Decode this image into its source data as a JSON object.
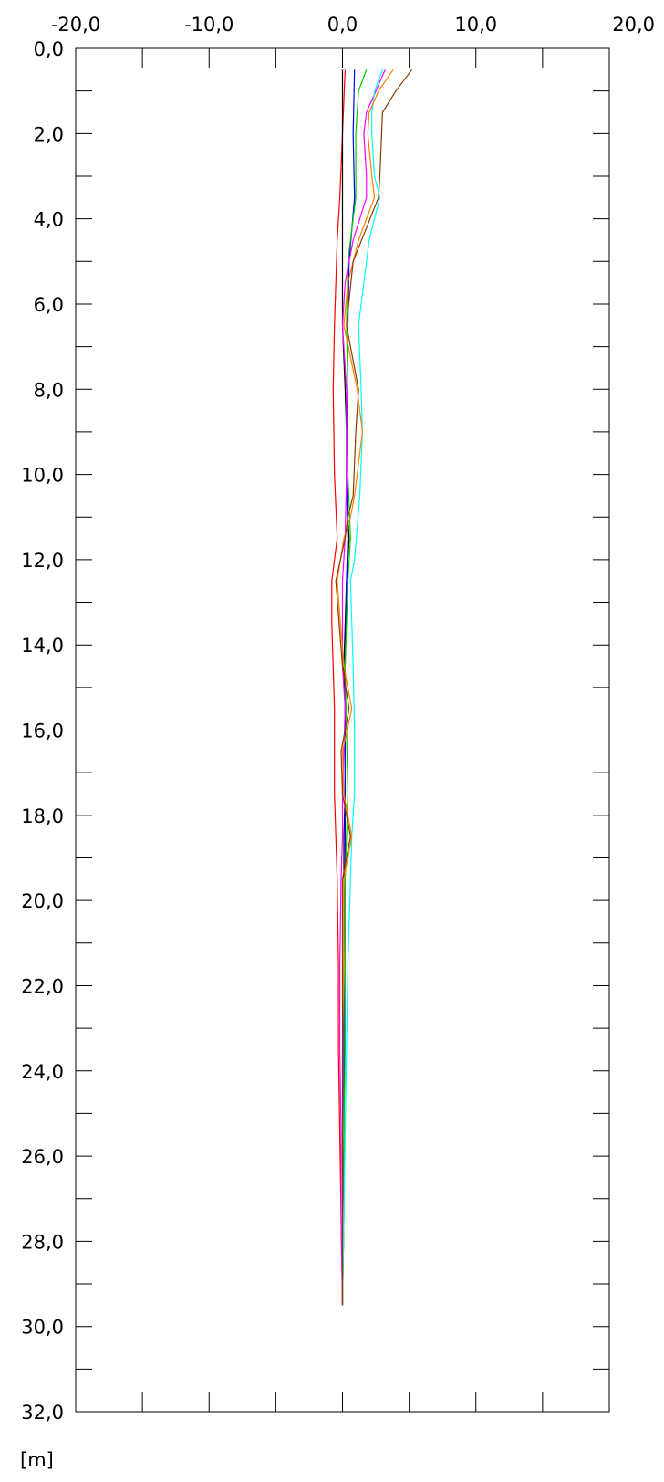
{
  "chart_data": {
    "type": "line",
    "orientation": "vertical-depth-profile",
    "title": "",
    "xlabel": "",
    "ylabel": "[m]",
    "xlim": [
      -20.0,
      20.0
    ],
    "ylim": [
      0.0,
      32.0
    ],
    "y_inverted": true,
    "x_ticks": [
      "-20,0",
      "-10,0",
      "0,0",
      "10,0",
      "20,0"
    ],
    "x_tick_values": [
      -20,
      -10,
      0,
      10,
      20
    ],
    "x_minor_tick_values": [
      -15,
      -5,
      5,
      15
    ],
    "y_ticks": [
      "0,0",
      "2,0",
      "4,0",
      "6,0",
      "8,0",
      "10,0",
      "12,0",
      "14,0",
      "16,0",
      "18,0",
      "20,0",
      "22,0",
      "24,0",
      "26,0",
      "28,0",
      "30,0",
      "32,0"
    ],
    "y_tick_values": [
      0,
      2,
      4,
      6,
      8,
      10,
      12,
      14,
      16,
      18,
      20,
      22,
      24,
      26,
      28,
      30,
      32
    ],
    "y_minor_tick_values": [
      1,
      3,
      5,
      7,
      9,
      11,
      13,
      15,
      17,
      19,
      21,
      23,
      25,
      27,
      29,
      31
    ],
    "grid": false,
    "legend": "none",
    "series": [
      {
        "color": "#ff0000",
        "depth": [
          0.5,
          2.0,
          3.5,
          4.5,
          6.5,
          8.0,
          10.0,
          11.5,
          12.5,
          13.5,
          15.5,
          17.5,
          19.5,
          21.5,
          23.5,
          25.5,
          27.5,
          29.5
        ],
        "values": [
          0.2,
          0.0,
          -0.2,
          -0.4,
          -0.6,
          -0.7,
          -0.6,
          -0.4,
          -0.8,
          -0.8,
          -0.6,
          -0.6,
          -0.4,
          -0.3,
          -0.3,
          -0.2,
          -0.1,
          0.0
        ]
      },
      {
        "color": "#000000",
        "depth": [
          0.5,
          1.0,
          2.0,
          3.5,
          4.5,
          5.5,
          6.5,
          8.0,
          9.0,
          10.5,
          11.5,
          12.5,
          14.5,
          15.5,
          17.5,
          18.5,
          19.5,
          21.5,
          23.5,
          25.5,
          27.5,
          29.5
        ],
        "values": [
          0.0,
          0.0,
          0.0,
          0.0,
          0.0,
          0.0,
          0.0,
          0.2,
          0.3,
          0.3,
          0.5,
          0.3,
          0.1,
          0.2,
          0.2,
          0.1,
          0.1,
          0.1,
          0.1,
          0.1,
          0.1,
          0.0
        ]
      },
      {
        "color": "#0000ff",
        "depth": [
          0.5,
          2.0,
          3.5,
          5.0,
          6.5,
          8.0,
          10.0,
          11.5,
          12.5,
          14.5,
          16.0,
          17.5,
          19.5,
          21.5,
          23.5,
          25.5,
          27.5,
          29.5
        ],
        "values": [
          0.9,
          0.8,
          0.9,
          0.5,
          0.4,
          0.4,
          0.3,
          0.4,
          0.3,
          0.2,
          0.2,
          0.2,
          0.2,
          0.1,
          0.1,
          0.1,
          0.0,
          0.0
        ]
      },
      {
        "color": "#00cc00",
        "depth": [
          0.5,
          1.0,
          2.0,
          3.5,
          5.0,
          6.5,
          8.0,
          10.0,
          11.5,
          12.5,
          14.5,
          16.0,
          17.5,
          19.5,
          21.5,
          23.5,
          25.5,
          27.5,
          29.5
        ],
        "values": [
          1.8,
          1.2,
          1.0,
          1.0,
          0.4,
          0.3,
          0.4,
          0.4,
          0.6,
          0.4,
          0.2,
          0.3,
          0.4,
          0.2,
          0.2,
          0.2,
          0.1,
          0.1,
          0.0
        ]
      },
      {
        "color": "#ff00ff",
        "depth": [
          0.5,
          1.0,
          1.5,
          2.0,
          3.0,
          3.5,
          4.5,
          5.5,
          6.5,
          8.0,
          10.0,
          11.5,
          12.5,
          14.5,
          15.5,
          17.5,
          18.5,
          19.5,
          21.5,
          23.5,
          25.5,
          27.5,
          29.5
        ],
        "values": [
          3.2,
          2.5,
          1.8,
          1.6,
          1.8,
          1.8,
          0.8,
          0.2,
          0.0,
          0.3,
          0.3,
          0.2,
          0.0,
          0.0,
          0.2,
          0.0,
          0.0,
          -0.1,
          -0.2,
          -0.2,
          -0.1,
          -0.1,
          0.0
        ]
      },
      {
        "color": "#00ffff",
        "depth": [
          0.5,
          1.0,
          1.5,
          2.0,
          3.0,
          3.5,
          4.5,
          5.5,
          6.5,
          8.0,
          9.0,
          10.5,
          12.0,
          12.5,
          14.5,
          16.0,
          17.5,
          18.5,
          19.5,
          21.5,
          23.5,
          25.5,
          27.5,
          29.5
        ],
        "values": [
          3.0,
          2.4,
          2.2,
          2.2,
          2.4,
          2.8,
          2.0,
          1.6,
          1.2,
          1.4,
          1.5,
          1.3,
          0.9,
          0.6,
          0.8,
          0.9,
          0.9,
          0.7,
          0.6,
          0.4,
          0.3,
          0.2,
          0.1,
          0.0
        ]
      },
      {
        "color": "#ff8000",
        "depth": [
          0.5,
          1.0,
          1.5,
          2.0,
          3.0,
          3.5,
          4.5,
          5.5,
          6.5,
          8.0,
          9.0,
          10.5,
          11.0,
          11.5,
          12.5,
          14.5,
          15.5,
          16.5,
          17.5,
          18.5,
          19.5,
          21.5,
          23.5,
          25.5,
          27.5,
          29.5
        ],
        "values": [
          3.8,
          2.7,
          2.0,
          1.9,
          2.2,
          2.4,
          1.2,
          0.4,
          0.1,
          1.1,
          1.5,
          0.9,
          0.6,
          0.1,
          -0.4,
          0.1,
          0.7,
          0.0,
          0.1,
          0.7,
          0.1,
          0.1,
          0.0,
          0.0,
          0.0,
          0.0
        ]
      },
      {
        "color": "#8b3a00",
        "depth": [
          0.5,
          1.0,
          1.5,
          3.0,
          3.5,
          5.0,
          6.5,
          8.0,
          9.0,
          10.5,
          11.0,
          11.5,
          12.5,
          14.5,
          15.5,
          16.5,
          17.5,
          18.5,
          19.5,
          21.5,
          23.5,
          25.5,
          27.5,
          29.5
        ],
        "values": [
          5.2,
          4.0,
          3.0,
          2.8,
          2.7,
          0.8,
          0.3,
          1.2,
          1.0,
          0.8,
          0.4,
          0.2,
          -0.5,
          0.0,
          0.5,
          -0.1,
          0.0,
          0.6,
          0.0,
          0.0,
          0.0,
          0.0,
          0.0,
          0.0
        ]
      }
    ]
  }
}
